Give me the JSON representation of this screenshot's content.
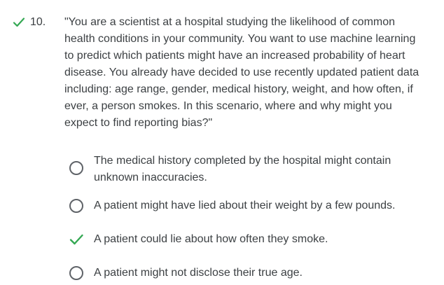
{
  "question": {
    "number": "10.",
    "status_icon": "check-icon",
    "text": "\"You are a scientist at a hospital studying the likelihood of common health conditions in your community. You want to use machine learning to predict which patients might have an increased probability of heart disease. You already have decided to use recently updated patient data including: age range, gender, medical history, weight, and how often, if ever, a person smokes. In this scenario, where and why might you expect to find reporting bias?\""
  },
  "colors": {
    "correct": "#34a853",
    "text": "#3c4043",
    "radio": "#5f6368"
  },
  "options": [
    {
      "label": "The medical history completed by the hospital might contain unknown inaccuracies.",
      "state": "unselected"
    },
    {
      "label": "A patient might have lied about their weight by a few pounds.",
      "state": "unselected"
    },
    {
      "label": "A patient could lie about how often they smoke.",
      "state": "correct-selected"
    },
    {
      "label": "A patient might not disclose their true age.",
      "state": "unselected"
    }
  ]
}
